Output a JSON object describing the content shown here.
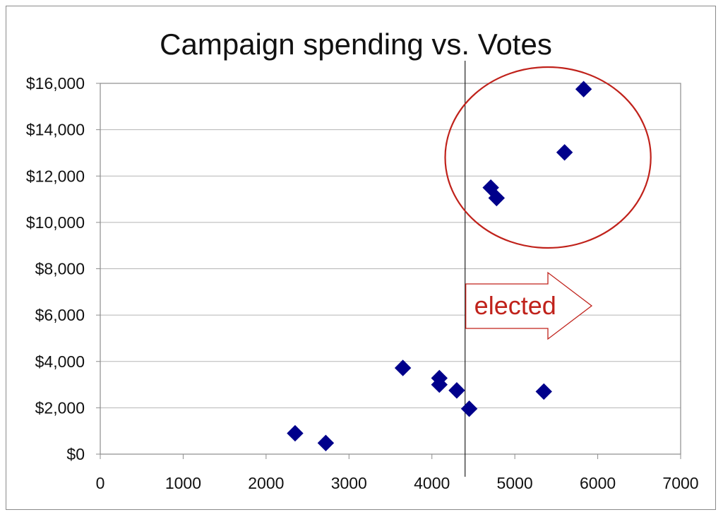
{
  "chart_data": {
    "type": "scatter",
    "title": "Campaign spending vs. Votes",
    "xlabel": "",
    "ylabel": "",
    "xlim": [
      0,
      7000
    ],
    "ylim": [
      0,
      16000
    ],
    "x_ticks": [
      0,
      1000,
      2000,
      3000,
      4000,
      5000,
      6000,
      7000
    ],
    "x_tick_labels": [
      "0",
      "1000",
      "2000",
      "3000",
      "4000",
      "5000",
      "6000",
      "7000"
    ],
    "y_ticks": [
      0,
      2000,
      4000,
      6000,
      8000,
      10000,
      12000,
      14000,
      16000
    ],
    "y_tick_labels": [
      "$0",
      "$2,000",
      "$4,000",
      "$6,000",
      "$8,000",
      "$10,000",
      "$12,000",
      "$14,000",
      "$16,000"
    ],
    "grid": "horizontal",
    "series": [
      {
        "marker": "diamond",
        "color": "#00008B",
        "points": [
          {
            "x": 2350,
            "y": 900
          },
          {
            "x": 2720,
            "y": 480
          },
          {
            "x": 3650,
            "y": 3720
          },
          {
            "x": 4090,
            "y": 3280
          },
          {
            "x": 4090,
            "y": 3000
          },
          {
            "x": 4300,
            "y": 2750
          },
          {
            "x": 4450,
            "y": 1960
          },
          {
            "x": 4710,
            "y": 11500
          },
          {
            "x": 4780,
            "y": 11050
          },
          {
            "x": 5350,
            "y": 2700
          },
          {
            "x": 5600,
            "y": 13020
          },
          {
            "x": 5830,
            "y": 15750
          }
        ]
      }
    ],
    "annotations": {
      "threshold_x": 4400,
      "arrow_label": "elected",
      "arrow_color": "#C0221B",
      "ellipse_color": "#C0221B",
      "ellipse_center": {
        "x": 5400,
        "y": 12800
      },
      "ellipse_radius": {
        "x": 1240,
        "y": 3900
      }
    }
  }
}
